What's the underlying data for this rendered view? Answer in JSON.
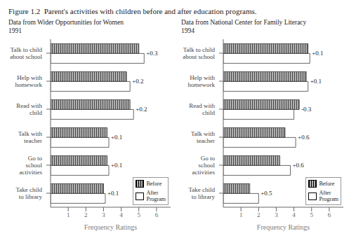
{
  "chart_data": [
    {
      "type": "bar",
      "orientation": "horizontal",
      "title": "Figure 1.2  Parent's activities with children before and after education programs.",
      "subtitle": "Data from Wider Opportunities for Women\n1991",
      "categories": [
        "Talk to child\nabout school",
        "Help with\nhomework",
        "Read with\nchild",
        "Talk with\nteacher",
        "Go to\nschool\nactivities",
        "Take child\nto library"
      ],
      "series": [
        {
          "name": "Before",
          "color": "#b0b0b0",
          "values": [
            5.0,
            4.3,
            4.5,
            3.2,
            3.2,
            3.0
          ]
        },
        {
          "name": "After\nProgram",
          "color": "#ffffff",
          "values": [
            5.3,
            4.5,
            4.7,
            3.3,
            3.3,
            3.1
          ]
        }
      ],
      "annotations": [
        "+0.3",
        "+0.2",
        "+0.2",
        "+0.1",
        "+0.1",
        "+0.1"
      ],
      "xlabel": "Frequency Ratings",
      "xlim": [
        0,
        6.8
      ],
      "xticks": [
        1,
        2,
        3,
        4,
        5,
        6
      ],
      "grid": false,
      "legend": "lower right"
    },
    {
      "type": "bar",
      "orientation": "horizontal",
      "subtitle": "Data from National Center for Family Literacy\n1994",
      "categories": [
        "Talk to child\nabout school",
        "Help with\nhomework",
        "Read with\nchild",
        "Talk with\nteacher",
        "Go to\nschool\nactivities",
        "Take child\nto library"
      ],
      "series": [
        {
          "name": "Before",
          "color": "#b0b0b0",
          "values": [
            4.8,
            4.7,
            4.3,
            3.5,
            3.2,
            1.5
          ]
        },
        {
          "name": "After\nProgram",
          "color": "#ffffff",
          "values": [
            4.9,
            4.8,
            4.0,
            4.1,
            3.8,
            2.0
          ]
        }
      ],
      "annotations": [
        "+0.1",
        "+0.1",
        "-0.3",
        "+0.6",
        "+0.6",
        "+0.5"
      ],
      "xlabel": "Frequency Ratings",
      "xlim": [
        0,
        6.8
      ],
      "xticks": [
        1,
        2,
        3,
        4,
        5,
        6
      ],
      "grid": false,
      "legend": "lower right"
    }
  ]
}
